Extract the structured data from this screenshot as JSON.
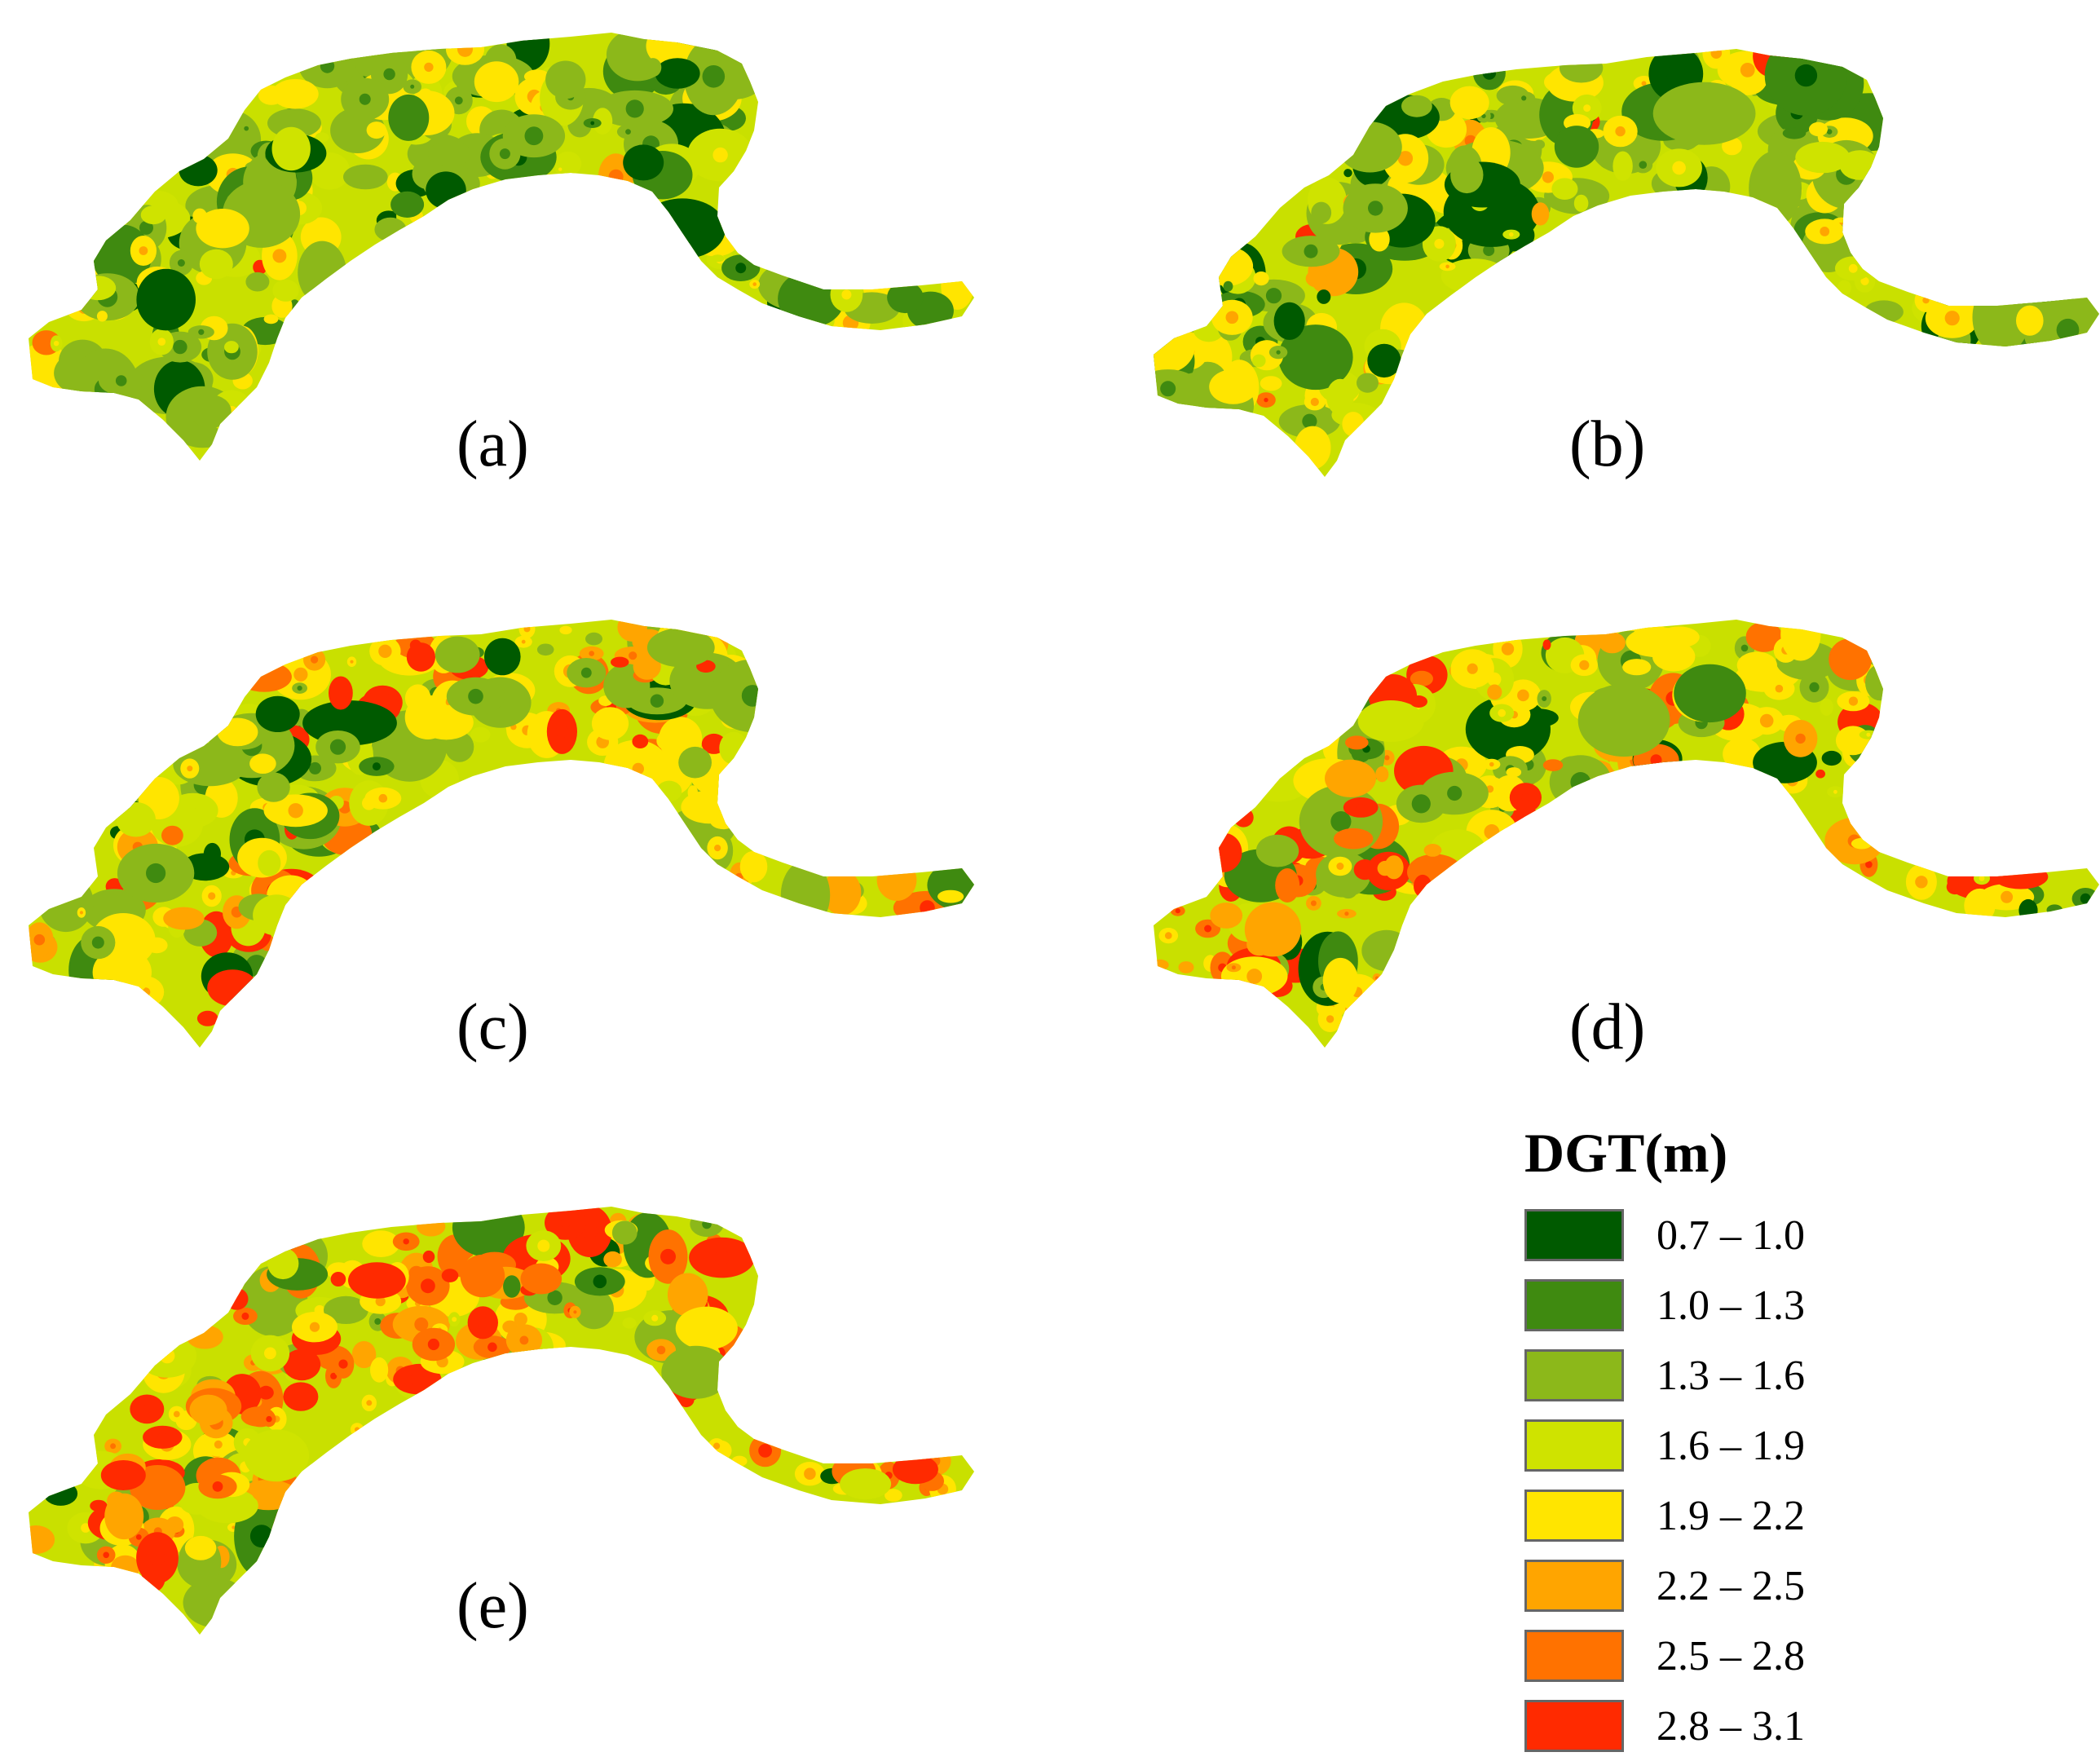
{
  "figure": {
    "panels": [
      {
        "id": "a",
        "label": "(a)"
      },
      {
        "id": "b",
        "label": "(b)"
      },
      {
        "id": "c",
        "label": "(c)"
      },
      {
        "id": "d",
        "label": "(d)"
      },
      {
        "id": "e",
        "label": "(e)"
      }
    ],
    "background_color": "#c9e000"
  },
  "legend": {
    "title": "DGT(m)",
    "classes": [
      {
        "range": "0.7 – 1.0",
        "color": "#005a00"
      },
      {
        "range": "1.0 – 1.3",
        "color": "#3f8a10"
      },
      {
        "range": "1.3 – 1.6",
        "color": "#8cb81a"
      },
      {
        "range": "1.6 – 1.9",
        "color": "#cfe300"
      },
      {
        "range": "1.9 – 2.2",
        "color": "#ffe500"
      },
      {
        "range": "2.2 – 2.5",
        "color": "#ffa500"
      },
      {
        "range": "2.5 – 2.8",
        "color": "#ff7200"
      },
      {
        "range": "2.8 – 3.1",
        "color": "#ff2a00"
      }
    ]
  }
}
